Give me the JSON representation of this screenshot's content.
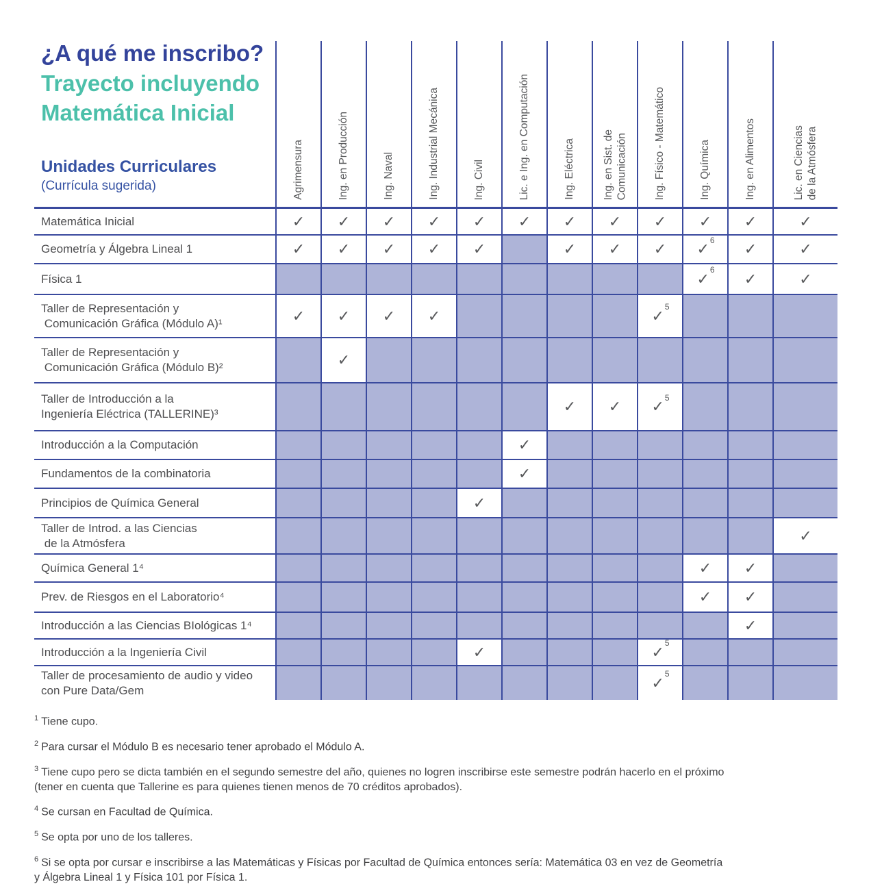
{
  "header": {
    "title": "¿A qué me inscribo?",
    "subtitle_line1": "Trayecto incluyendo",
    "subtitle_line2": "Matemática Inicial",
    "row_header_title": "Unidades Curriculares",
    "row_header_sub": "(Currícula sugerida)"
  },
  "colors": {
    "title_navy": "#33439b",
    "title_teal": "#4cc0aa",
    "subtitle_blue": "#3552a3",
    "grid_line": "#3a4a9e",
    "shaded_cell": "#aeb4d8",
    "check_gray": "#57585a"
  },
  "check_glyph": "✓",
  "columns": [
    "Agrimensura",
    "Ing. en Producción",
    "Ing. Naval",
    "Ing. Industrial Mecánica",
    "Ing. Civil",
    "Lic. e Ing. en Computación",
    "Ing. Eléctrica",
    "Ing. en Sist. de\nComunicación",
    "Ing. Físico - Matemático",
    "Ing. Química",
    "Ing. en Alimentos",
    "Lic. en Ciencias\nde la Atmósfera"
  ],
  "cell_states": {
    "c": "check",
    "c5": "check-with-footnote-5",
    "c6": "check-with-footnote-6",
    "s": "not-in-suggested-curriculum"
  },
  "rows": [
    {
      "label": "Matemática Inicial",
      "cells": [
        "c",
        "c",
        "c",
        "c",
        "c",
        "c",
        "c",
        "c",
        "c",
        "c",
        "c",
        "c"
      ]
    },
    {
      "label": "Geometría y Álgebra Lineal 1",
      "cells": [
        "c",
        "c",
        "c",
        "c",
        "c",
        "s",
        "c",
        "c",
        "c",
        "c6",
        "c",
        "c"
      ]
    },
    {
      "label": "Física 1",
      "cells": [
        "s",
        "s",
        "s",
        "s",
        "s",
        "s",
        "s",
        "s",
        "s",
        "c6",
        "c",
        "c"
      ]
    },
    {
      "label": "Taller de Representación y\n Comunicación Gráfica (Módulo A)¹",
      "cells": [
        "c",
        "c",
        "c",
        "c",
        "s",
        "s",
        "s",
        "s",
        "c5",
        "s",
        "s",
        "s"
      ]
    },
    {
      "label": "Taller de Representación y\n Comunicación Gráfica (Módulo B)²",
      "cells": [
        "s",
        "c",
        "s",
        "s",
        "s",
        "s",
        "s",
        "s",
        "s",
        "s",
        "s",
        "s"
      ]
    },
    {
      "label": "Taller de Introducción a la\nIngeniería Eléctrica (TALLERINE)³",
      "cells": [
        "s",
        "s",
        "s",
        "s",
        "s",
        "s",
        "c",
        "c",
        "c5",
        "s",
        "s",
        "s"
      ]
    },
    {
      "label": "Introducción a la Computación",
      "cells": [
        "s",
        "s",
        "s",
        "s",
        "s",
        "c",
        "s",
        "s",
        "s",
        "s",
        "s",
        "s"
      ]
    },
    {
      "label": "Fundamentos de la combinatoria",
      "cells": [
        "s",
        "s",
        "s",
        "s",
        "s",
        "c",
        "s",
        "s",
        "s",
        "s",
        "s",
        "s"
      ]
    },
    {
      "label": "Principios de Química General",
      "cells": [
        "s",
        "s",
        "s",
        "s",
        "c",
        "s",
        "s",
        "s",
        "s",
        "s",
        "s",
        "s"
      ]
    },
    {
      "label": "Taller de Introd. a las Ciencias\n de la Atmósfera",
      "cells": [
        "s",
        "s",
        "s",
        "s",
        "s",
        "s",
        "s",
        "s",
        "s",
        "s",
        "s",
        "c"
      ]
    },
    {
      "label": "Química General 1⁴",
      "cells": [
        "s",
        "s",
        "s",
        "s",
        "s",
        "s",
        "s",
        "s",
        "s",
        "c",
        "c",
        "s"
      ]
    },
    {
      "label": "Prev. de Riesgos en el Laboratorio⁴",
      "cells": [
        "s",
        "s",
        "s",
        "s",
        "s",
        "s",
        "s",
        "s",
        "s",
        "c",
        "c",
        "s"
      ]
    },
    {
      "label": "Introducción a las Ciencias BIológicas 1⁴",
      "cells": [
        "s",
        "s",
        "s",
        "s",
        "s",
        "s",
        "s",
        "s",
        "s",
        "s",
        "c",
        "s"
      ]
    },
    {
      "label": "Introducción a la Ingeniería Civil",
      "cells": [
        "s",
        "s",
        "s",
        "s",
        "c",
        "s",
        "s",
        "s",
        "c5",
        "s",
        "s",
        "s"
      ]
    },
    {
      "label": "Taller de procesamiento de audio y video\ncon Pure Data/Gem",
      "cells": [
        "s",
        "s",
        "s",
        "s",
        "s",
        "s",
        "s",
        "s",
        "c5",
        "s",
        "s",
        "s"
      ]
    }
  ],
  "footnotes": [
    {
      "num": "1",
      "text": "Tiene cupo."
    },
    {
      "num": "2",
      "text": "Para cursar el Módulo B es necesario tener aprobado el Módulo A."
    },
    {
      "num": "3",
      "text": "Tiene cupo pero se dicta también en el segundo semestre del año, quienes no logren inscribirse este semestre podrán hacerlo en el próximo\n(tener en cuenta que Tallerine es para quienes tienen menos de 70 créditos aprobados)."
    },
    {
      "num": "4",
      "text": "Se cursan en Facultad de Química."
    },
    {
      "num": "5",
      "text": "Se opta por uno de los talleres."
    },
    {
      "num": "6",
      "text": "Si se opta por cursar e inscribirse a las Matemáticas y Físicas por Facultad de Química entonces sería: Matemática 03 en vez de Geometría\ny Álgebra Lineal 1 y Física 101 por Física 1."
    }
  ]
}
